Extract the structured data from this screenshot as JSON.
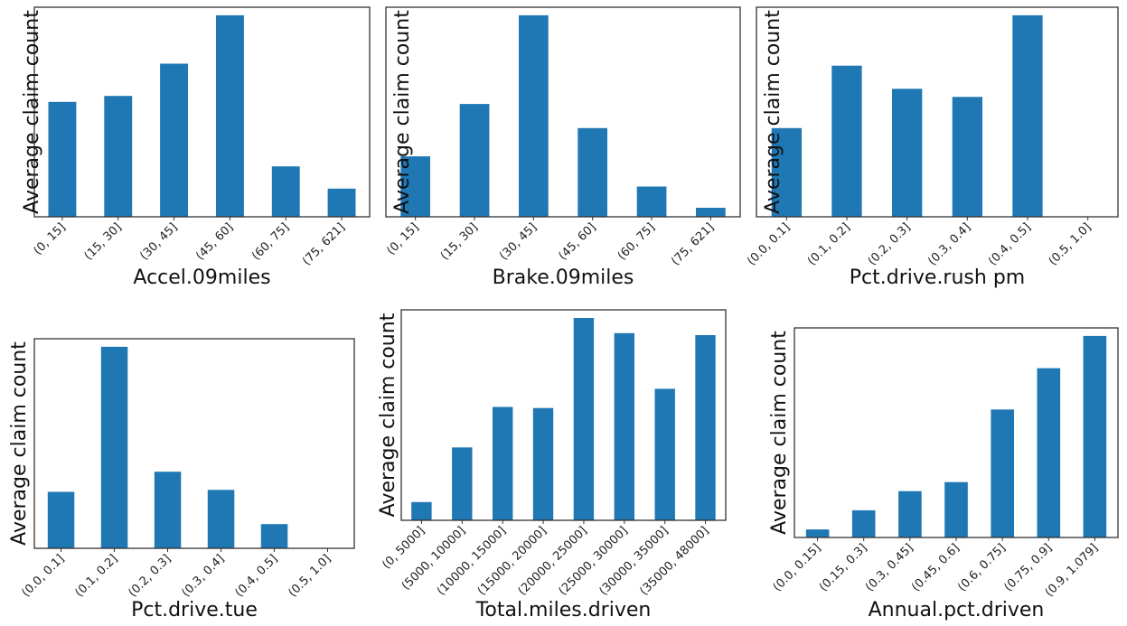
{
  "chart_data": [
    {
      "type": "bar",
      "xlabel": "Accel.09miles",
      "ylabel": "Average claim count",
      "categories": [
        "(0, 15]",
        "(15, 30]",
        "(30, 45]",
        "(45, 60]",
        "(60, 75]",
        "(75, 621]"
      ],
      "values": [
        0.57,
        0.6,
        0.76,
        1.0,
        0.25,
        0.14
      ],
      "ylim": [
        0,
        1.04
      ],
      "grid": false,
      "legend": "none"
    },
    {
      "type": "bar",
      "xlabel": "Brake.09miles",
      "ylabel": "Average claim count",
      "categories": [
        "(0, 15]",
        "(15, 30]",
        "(30, 45]",
        "(45, 60]",
        "(60, 75]",
        "(75, 621]"
      ],
      "values": [
        0.3,
        0.56,
        1.0,
        0.44,
        0.15,
        0.045
      ],
      "ylim": [
        0,
        1.04
      ],
      "grid": false,
      "legend": "none"
    },
    {
      "type": "bar",
      "xlabel": "Pct.drive.rush pm",
      "ylabel": "Average claim count",
      "categories": [
        "(0.0, 0.1]",
        "(0.1, 0.2]",
        "(0.2, 0.3]",
        "(0.3, 0.4]",
        "(0.4, 0.5]",
        "(0.5, 1.0]"
      ],
      "values": [
        0.44,
        0.75,
        0.635,
        0.595,
        1.0,
        0
      ],
      "ylim": [
        0,
        1.04
      ],
      "grid": false,
      "legend": "none"
    },
    {
      "type": "bar",
      "xlabel": "Pct.drive.tue",
      "ylabel": "Average claim count",
      "categories": [
        "(0.0, 0.1]",
        "(0.1, 0.2]",
        "(0.2, 0.3]",
        "(0.3, 0.4]",
        "(0.4, 0.5]",
        "(0.5, 1.0]"
      ],
      "values": [
        0.28,
        1.0,
        0.38,
        0.29,
        0.12,
        0
      ],
      "ylim": [
        0,
        1.04
      ],
      "grid": false,
      "legend": "none"
    },
    {
      "type": "bar",
      "xlabel": "Total.miles.driven",
      "ylabel": "Average claim count",
      "categories": [
        "(0, 5000]",
        "(5000, 10000]",
        "(10000, 15000]",
        "(15000, 20000]",
        "(20000, 25000]",
        "(25000, 30000]",
        "(30000, 35000]",
        "(35000, 48000]"
      ],
      "values": [
        0.09,
        0.36,
        0.56,
        0.555,
        1.0,
        0.925,
        0.65,
        0.915
      ],
      "ylim": [
        0,
        1.04
      ],
      "grid": false,
      "legend": "none"
    },
    {
      "type": "bar",
      "xlabel": "Annual.pct.driven",
      "ylabel": "Average claim count",
      "categories": [
        "(0.0, 0.15]",
        "(0.15, 0.3]",
        "(0.3, 0.45]",
        "(0.45, 0.6]",
        "(0.6, 0.75]",
        "(0.75, 0.9]",
        "(0.9, 1.079]"
      ],
      "values": [
        0.04,
        0.135,
        0.23,
        0.275,
        0.635,
        0.84,
        1.0
      ],
      "ylim": [
        0,
        1.04
      ],
      "grid": false,
      "legend": "none"
    }
  ]
}
